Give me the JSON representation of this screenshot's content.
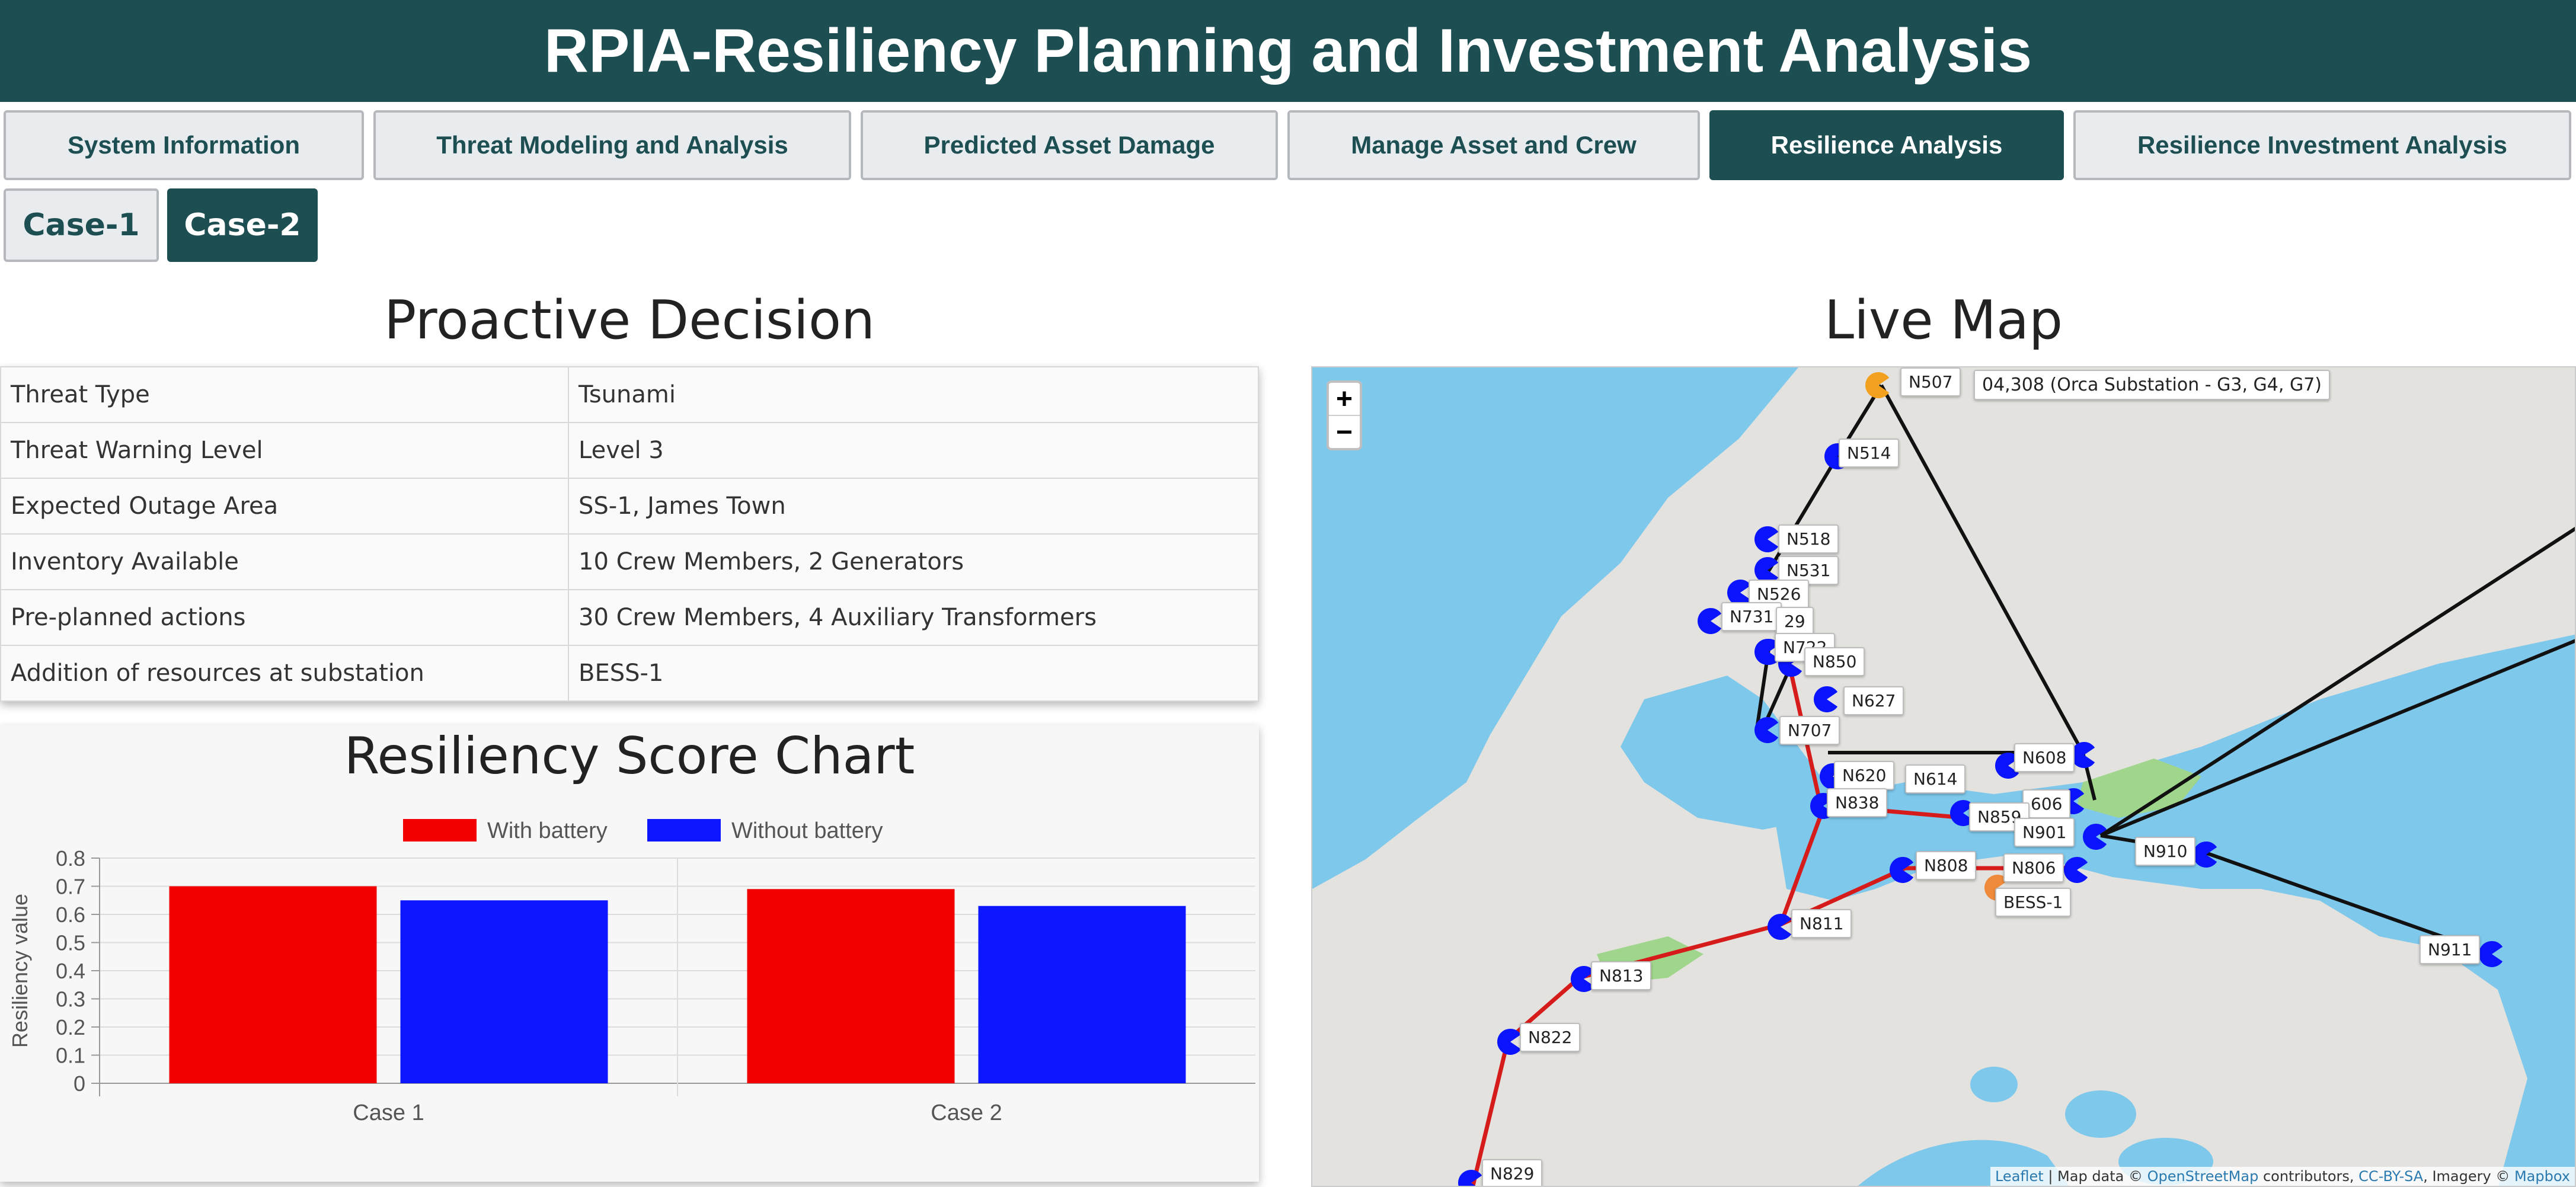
{
  "app_title": "RPIA-Resiliency Planning and Investment Analysis",
  "main_tabs": [
    {
      "label": "System Information"
    },
    {
      "label": "Threat Modeling and Analysis"
    },
    {
      "label": "Predicted Asset Damage"
    },
    {
      "label": "Manage Asset and Crew"
    },
    {
      "label": "Resilience Analysis",
      "active": true
    },
    {
      "label": "Resilience Investment Analysis"
    }
  ],
  "sub_tabs": [
    {
      "label": "Case-1"
    },
    {
      "label": "Case-2",
      "active": true
    }
  ],
  "proactive": {
    "title": "Proactive Decision",
    "rows": [
      {
        "label": "Threat Type",
        "value": "Tsunami"
      },
      {
        "label": "Threat Warning Level",
        "value": "Level 3"
      },
      {
        "label": "Expected Outage Area",
        "value": "SS-1, James Town"
      },
      {
        "label": "Inventory Available",
        "value": "10 Crew Members, 2 Generators"
      },
      {
        "label": "Pre-planned actions",
        "value": "30 Crew Members, 4 Auxiliary Transformers"
      },
      {
        "label": "Addition of resources at substation",
        "value": "BESS-1"
      }
    ]
  },
  "chart_data": {
    "type": "bar",
    "title": "Resiliency Score Chart",
    "categories": [
      "Case 1",
      "Case 2"
    ],
    "series": [
      {
        "name": "With battery",
        "color": "#f20000",
        "values": [
          0.7,
          0.69
        ]
      },
      {
        "name": "Without battery",
        "color": "#0d17ff",
        "values": [
          0.65,
          0.63
        ]
      }
    ],
    "xlabel": "",
    "ylabel": "Resiliency value",
    "ylim": [
      0,
      0.8
    ],
    "yticks": [
      "0",
      "0.1",
      "0.2",
      "0.3",
      "0.4",
      "0.5",
      "0.6",
      "0.7",
      "0.8"
    ],
    "legend": "top",
    "grid": true
  },
  "map": {
    "title": "Live Map",
    "zoom_in": "+",
    "zoom_out": "−",
    "top_label": "04,308 (Orca Substation - G3, G4, G7)",
    "nodes": [
      "N507",
      "N514",
      "N518",
      "N531",
      "N526",
      "N731",
      "29",
      "N722",
      "N850",
      "N627",
      "N707",
      "N620",
      "N614",
      "N608",
      "N838",
      "606",
      "N859",
      "N901",
      "N808",
      "N806",
      "N910",
      "BESS-1",
      "N811",
      "N911",
      "N813",
      "N822",
      "N829"
    ],
    "attribution": {
      "leaflet": "Leaflet",
      "text1": " | Map data © ",
      "osm": "OpenStreetMap",
      "text2": " contributors, ",
      "ccbysa": "CC-BY-SA",
      "text3": ", Imagery © ",
      "mapbox": "Mapbox"
    }
  }
}
